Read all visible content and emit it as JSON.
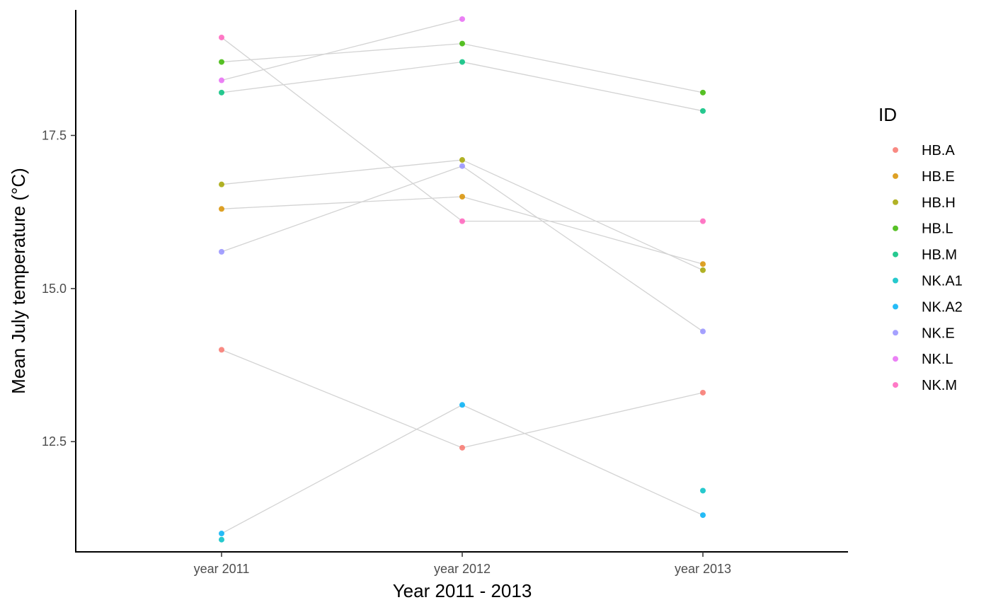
{
  "chart_data": {
    "type": "line",
    "xlabel": "Year 2011 - 2013",
    "ylabel": "Mean July temperature (°C)",
    "categories": [
      "year 2011",
      "year 2012",
      "year 2013"
    ],
    "ylim": [
      10.7,
      19.55
    ],
    "yticks": [
      12.5,
      15.0,
      17.5
    ],
    "ytick_labels": [
      "12.5",
      "15.0",
      "17.5"
    ],
    "grid": false,
    "legend": {
      "title": "ID",
      "position": "right"
    },
    "line_color": "#d3d3d3",
    "series": [
      {
        "name": "HB.A",
        "color": "#F8766D",
        "values": [
          14.0,
          12.4,
          13.3
        ]
      },
      {
        "name": "HB.E",
        "color": "#D89000",
        "values": [
          16.3,
          16.5,
          15.4
        ]
      },
      {
        "name": "HB.H",
        "color": "#A3A500",
        "values": [
          16.7,
          17.1,
          15.3
        ]
      },
      {
        "name": "HB.L",
        "color": "#39B600",
        "values": [
          18.7,
          19.0,
          18.2
        ]
      },
      {
        "name": "HB.M",
        "color": "#00BF7D",
        "values": [
          18.2,
          18.7,
          17.9
        ]
      },
      {
        "name": "NK.A1",
        "color": "#00BFC4",
        "values": [
          10.9,
          null,
          11.7
        ]
      },
      {
        "name": "NK.A2",
        "color": "#00B0F6",
        "values": [
          11.0,
          13.1,
          11.3
        ]
      },
      {
        "name": "NK.E",
        "color": "#9590FF",
        "values": [
          15.6,
          17.0,
          14.3
        ]
      },
      {
        "name": "NK.L",
        "color": "#E76BF3",
        "values": [
          18.4,
          19.4,
          null
        ]
      },
      {
        "name": "NK.M",
        "color": "#FF62BC",
        "values": [
          19.1,
          16.1,
          16.1
        ]
      }
    ]
  }
}
